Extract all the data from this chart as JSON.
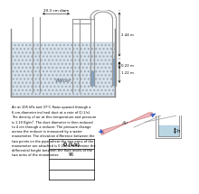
{
  "manometer_label": "Water",
  "dim_top": "20.3 cm diam",
  "dim_right1": "2.44 m",
  "dim_right2": "1.22 m",
  "dim_right3": "0.22 m",
  "problem_text": "Air at 105 kPa and 37°C flows upward through a\n6-cm-diameter inclined duct at a rate of Q (L/s).\nThe density of air at this temperature and pressure\nis 1.10 Kg/m³. The duct diameter is then reduced\nto 4 cm through a reducer. The pressure change\nacross the reducer is measured by a water\nmanometer. The elevation difference between the\ntwo points on the pipe where the two arms of the\nmanometer are attached is 0.20 m. Determine the\ndifferential height between the fluid levels of the\ntwo arms of the manometer.",
  "table_header": "Q (L/s)",
  "table_subheader": "90",
  "air_label": "Air",
  "h_label": "h",
  "tank_facecolor": "#d4dfe8",
  "tank_edgecolor": "#888888",
  "tube_color": "#999999",
  "water_tube_color": "#7799bb",
  "duct_fill": "#f4b8c0",
  "duct_edge": "#cc8888",
  "arrow_color": "#2255cc",
  "man_water_color": "#aaccdd",
  "man_edge_color": "#888888"
}
